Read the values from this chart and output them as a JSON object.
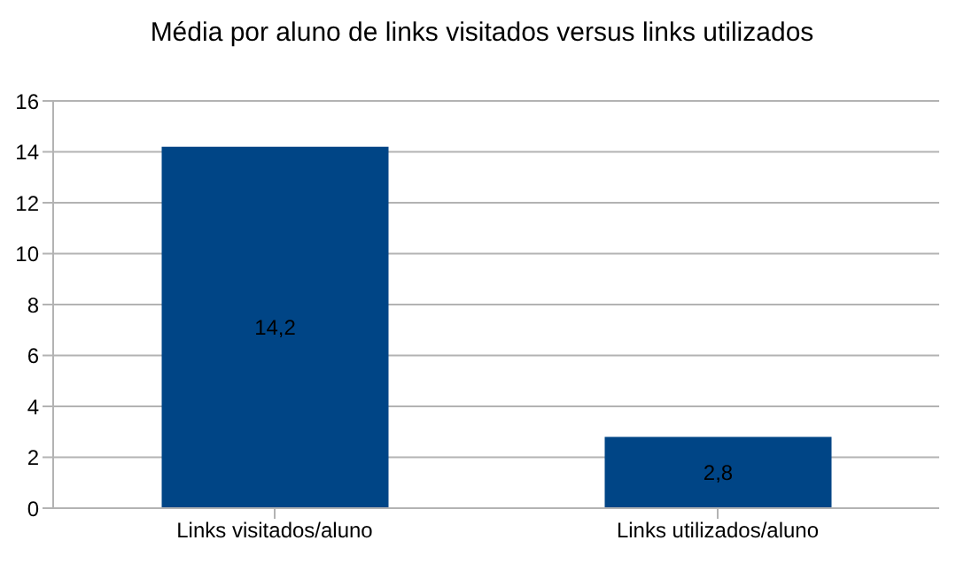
{
  "chart_data": {
    "type": "bar",
    "title": "Média por aluno de links visitados versus links utilizados",
    "categories": [
      "Links visitados/aluno",
      "Links utilizados/aluno"
    ],
    "values": [
      14.2,
      2.8
    ],
    "color": "#004586",
    "value_labels": [
      "14,2",
      "2,8"
    ],
    "ylim": [
      0,
      16
    ],
    "yticks": [
      0,
      2,
      4,
      6,
      8,
      10,
      12,
      14,
      16
    ],
    "grid": "y"
  }
}
